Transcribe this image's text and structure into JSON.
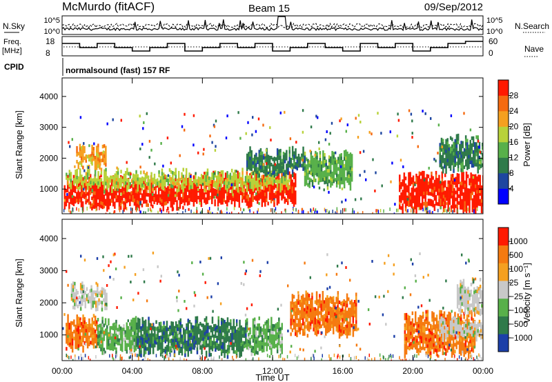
{
  "header": {
    "station": "McMurdo (fitACF)",
    "beam": "Beam 15",
    "date": "09/Sep/2012"
  },
  "top_panels": {
    "nsky_label": "N.Sky",
    "nsearch_label": "N.Search",
    "nsky_ticks": [
      "10^5",
      "10^0"
    ],
    "freq_label_line1": "Freq.",
    "freq_label_line2": "[MHz]",
    "freq_ticks": [
      "18",
      "8"
    ],
    "nave_label": "Nave",
    "nave_ticks": [
      "60",
      "0"
    ],
    "cpid_label": "CPID",
    "cpid_text": "normalsound (fast) 157 RF"
  },
  "colors": {
    "power_scale": [
      "#0000ff",
      "#1e46a0",
      "#2f7a4a",
      "#58b04a",
      "#b8d23a",
      "#f5a020",
      "#f56a10",
      "#ff1a00"
    ],
    "velocity_scale": [
      "#1c3fa8",
      "#2f7a4a",
      "#58b04a",
      "#c8c8c8",
      "#f5a020",
      "#f57a10",
      "#ff1a00"
    ]
  },
  "chart_data": [
    {
      "type": "heatmap",
      "panel": "power",
      "ylabel": "Slant Range [km]",
      "yticks": [
        "1000",
        "2000",
        "3000",
        "4000"
      ],
      "ylim": [
        200,
        4600
      ],
      "xticks": [
        "00:00",
        "04:00",
        "08:00",
        "12:00",
        "16:00",
        "20:00",
        "00:00"
      ],
      "xlim_hours": [
        0,
        24
      ],
      "colorbar_label": "Power [dB]",
      "colorbar_ticks": [
        "28",
        "24",
        "20",
        "16",
        "12",
        "8",
        "4"
      ],
      "bands": [
        {
          "t0": 0.1,
          "t1": 7.2,
          "r0": 500,
          "r1": 1300,
          "level": 7
        },
        {
          "t0": 7.2,
          "t1": 13.3,
          "r0": 600,
          "r1": 1400,
          "level": 7
        },
        {
          "t0": 0.2,
          "t1": 13.0,
          "r0": 1100,
          "r1": 1500,
          "level": 4
        },
        {
          "t0": 13.8,
          "t1": 16.5,
          "r0": 1200,
          "r1": 2100,
          "level": 3
        },
        {
          "t0": 0.8,
          "t1": 2.5,
          "r0": 1800,
          "r1": 2300,
          "level": 5
        },
        {
          "t0": 19.2,
          "t1": 24.0,
          "r0": 400,
          "r1": 1400,
          "level": 7
        },
        {
          "t0": 10.5,
          "t1": 13.8,
          "r0": 1600,
          "r1": 2200,
          "level": 2
        },
        {
          "t0": 21.5,
          "t1": 24.0,
          "r0": 1700,
          "r1": 2600,
          "level": 2
        }
      ]
    },
    {
      "type": "heatmap",
      "panel": "velocity",
      "ylabel": "Slant Range [km]",
      "yticks": [
        "1000",
        "2000",
        "3000",
        "4000"
      ],
      "ylim": [
        200,
        4600
      ],
      "xticks": [
        "00:00",
        "04:00",
        "08:00",
        "12:00",
        "16:00",
        "20:00",
        "00:00"
      ],
      "xlabel": "Time UT",
      "colorbar_label": "Velocity [m s⁻¹]",
      "colorbar_ticks": [
        "1000",
        "500",
        "100",
        "25",
        "−25",
        "−100",
        "−500",
        "−1000"
      ],
      "bands": [
        {
          "t0": 0.2,
          "t1": 2.0,
          "r0": 700,
          "r1": 1500,
          "level": 5
        },
        {
          "t0": 2.0,
          "t1": 4.2,
          "r0": 600,
          "r1": 1400,
          "level": 2
        },
        {
          "t0": 4.2,
          "t1": 10.5,
          "r0": 500,
          "r1": 1400,
          "level": 1
        },
        {
          "t0": 10.5,
          "t1": 12.5,
          "r0": 600,
          "r1": 1400,
          "level": 2
        },
        {
          "t0": 13.0,
          "t1": 16.8,
          "r0": 1100,
          "r1": 2200,
          "level": 5
        },
        {
          "t0": 0.5,
          "t1": 2.5,
          "r0": 1900,
          "r1": 2500,
          "level": 3
        },
        {
          "t0": 19.5,
          "t1": 23.5,
          "r0": 500,
          "r1": 1600,
          "level": 5
        },
        {
          "t0": 21.5,
          "t1": 24.0,
          "r0": 1000,
          "r1": 1400,
          "level": 3
        },
        {
          "t0": 22.5,
          "t1": 24.0,
          "r0": 1800,
          "r1": 2600,
          "level": 3
        }
      ]
    }
  ]
}
